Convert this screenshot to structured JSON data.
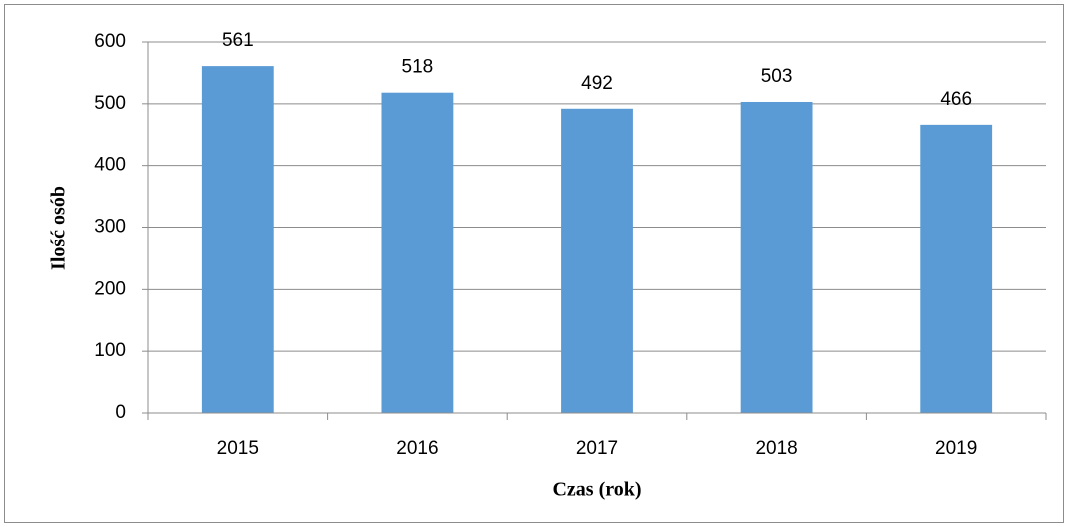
{
  "chart_data": {
    "type": "bar",
    "categories": [
      "2015",
      "2016",
      "2017",
      "2018",
      "2019"
    ],
    "values": [
      561,
      518,
      492,
      503,
      466
    ],
    "color": "#5b9bd5",
    "ylim": [
      0,
      600
    ],
    "yticks": [
      0,
      100,
      200,
      300,
      400,
      500,
      600
    ],
    "grid": true,
    "xlabel": "Czas (rok)",
    "ylabel": "Ilość osób"
  }
}
